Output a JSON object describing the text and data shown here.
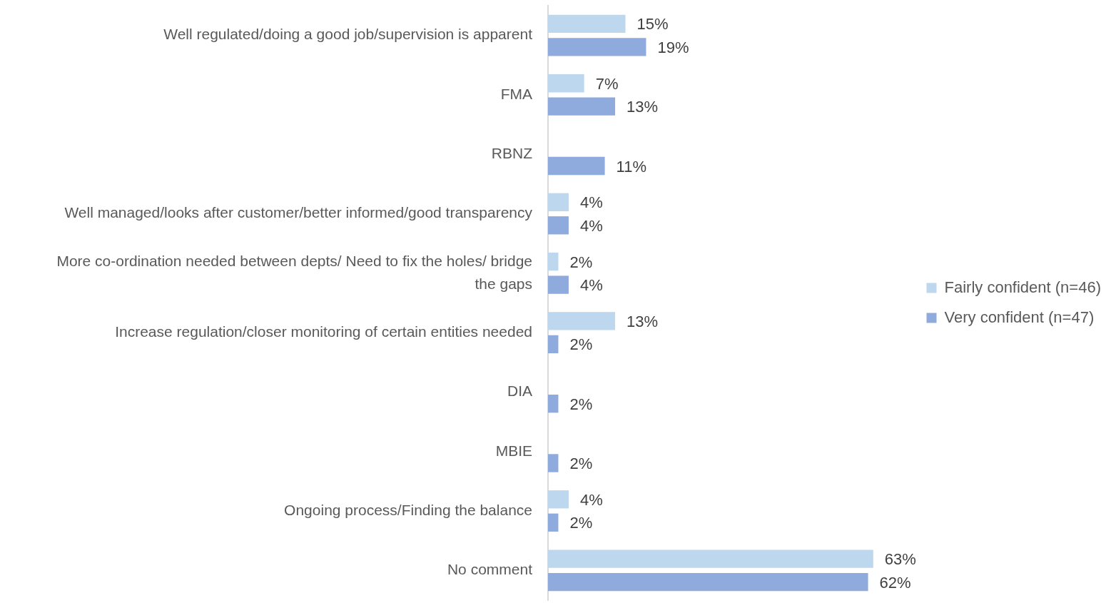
{
  "chart_data": {
    "type": "bar",
    "orientation": "horizontal",
    "categories": [
      "Well regulated/doing a good job/supervision is apparent",
      "FMA",
      "RBNZ",
      "Well managed/looks after customer/better informed/good transparency",
      "More co-ordination needed between depts/ Need to fix the holes/ bridge the gaps",
      "Increase regulation/closer monitoring of certain entities needed",
      "DIA",
      "MBIE",
      "Ongoing process/Finding the balance",
      "No comment"
    ],
    "series": [
      {
        "name": "Fairly confident (n=46)",
        "color": "#bdd7ee",
        "values": [
          15,
          7,
          null,
          4,
          2,
          13,
          null,
          null,
          4,
          63
        ],
        "value_labels": [
          "15%",
          "7%",
          null,
          "4%",
          "2%",
          "13%",
          null,
          null,
          "4%",
          "63%"
        ]
      },
      {
        "name": "Very confident (n=47)",
        "color": "#8faadc",
        "values": [
          19,
          13,
          11,
          4,
          4,
          2,
          2,
          2,
          2,
          62
        ],
        "value_labels": [
          "19%",
          "13%",
          "11%",
          "4%",
          "4%",
          "2%",
          "2%",
          "2%",
          "2%",
          "62%"
        ]
      }
    ],
    "tick_labels": "y",
    "grid": false,
    "legend": "right"
  }
}
